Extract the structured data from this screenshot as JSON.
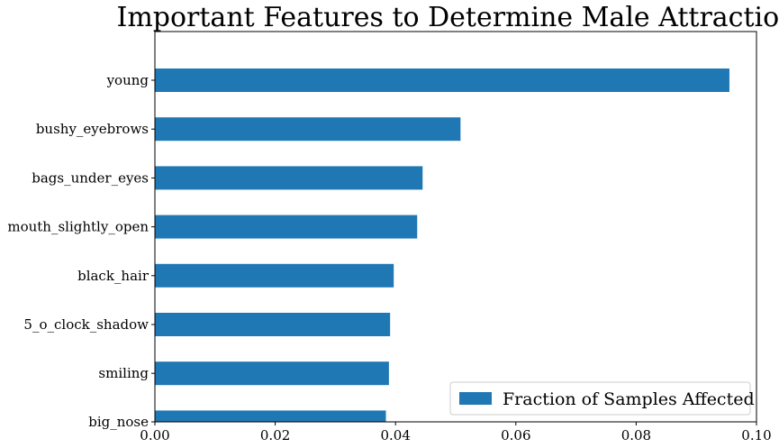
{
  "chart_data": {
    "type": "bar",
    "orientation": "horizontal",
    "title": "Important Features to Determine Male Attraction",
    "xlabel": "",
    "ylabel": "",
    "categories": [
      "young",
      "bushy_eyebrows",
      "bags_under_eyes",
      "mouth_slightly_open",
      "black_hair",
      "5_o_clock_shadow",
      "smiling",
      "big_nose"
    ],
    "series": [
      {
        "name": "Fraction of Samples Affected",
        "values": [
          0.0955,
          0.0508,
          0.0445,
          0.0436,
          0.0397,
          0.0391,
          0.0389,
          0.0384
        ],
        "color": "#1f77b4"
      }
    ],
    "xlim": [
      0.0,
      0.1
    ],
    "xticks": [
      "0.00",
      "0.02",
      "0.04",
      "0.06",
      "0.08",
      "0.10"
    ],
    "grid": false,
    "legend_position": "lower-right"
  }
}
